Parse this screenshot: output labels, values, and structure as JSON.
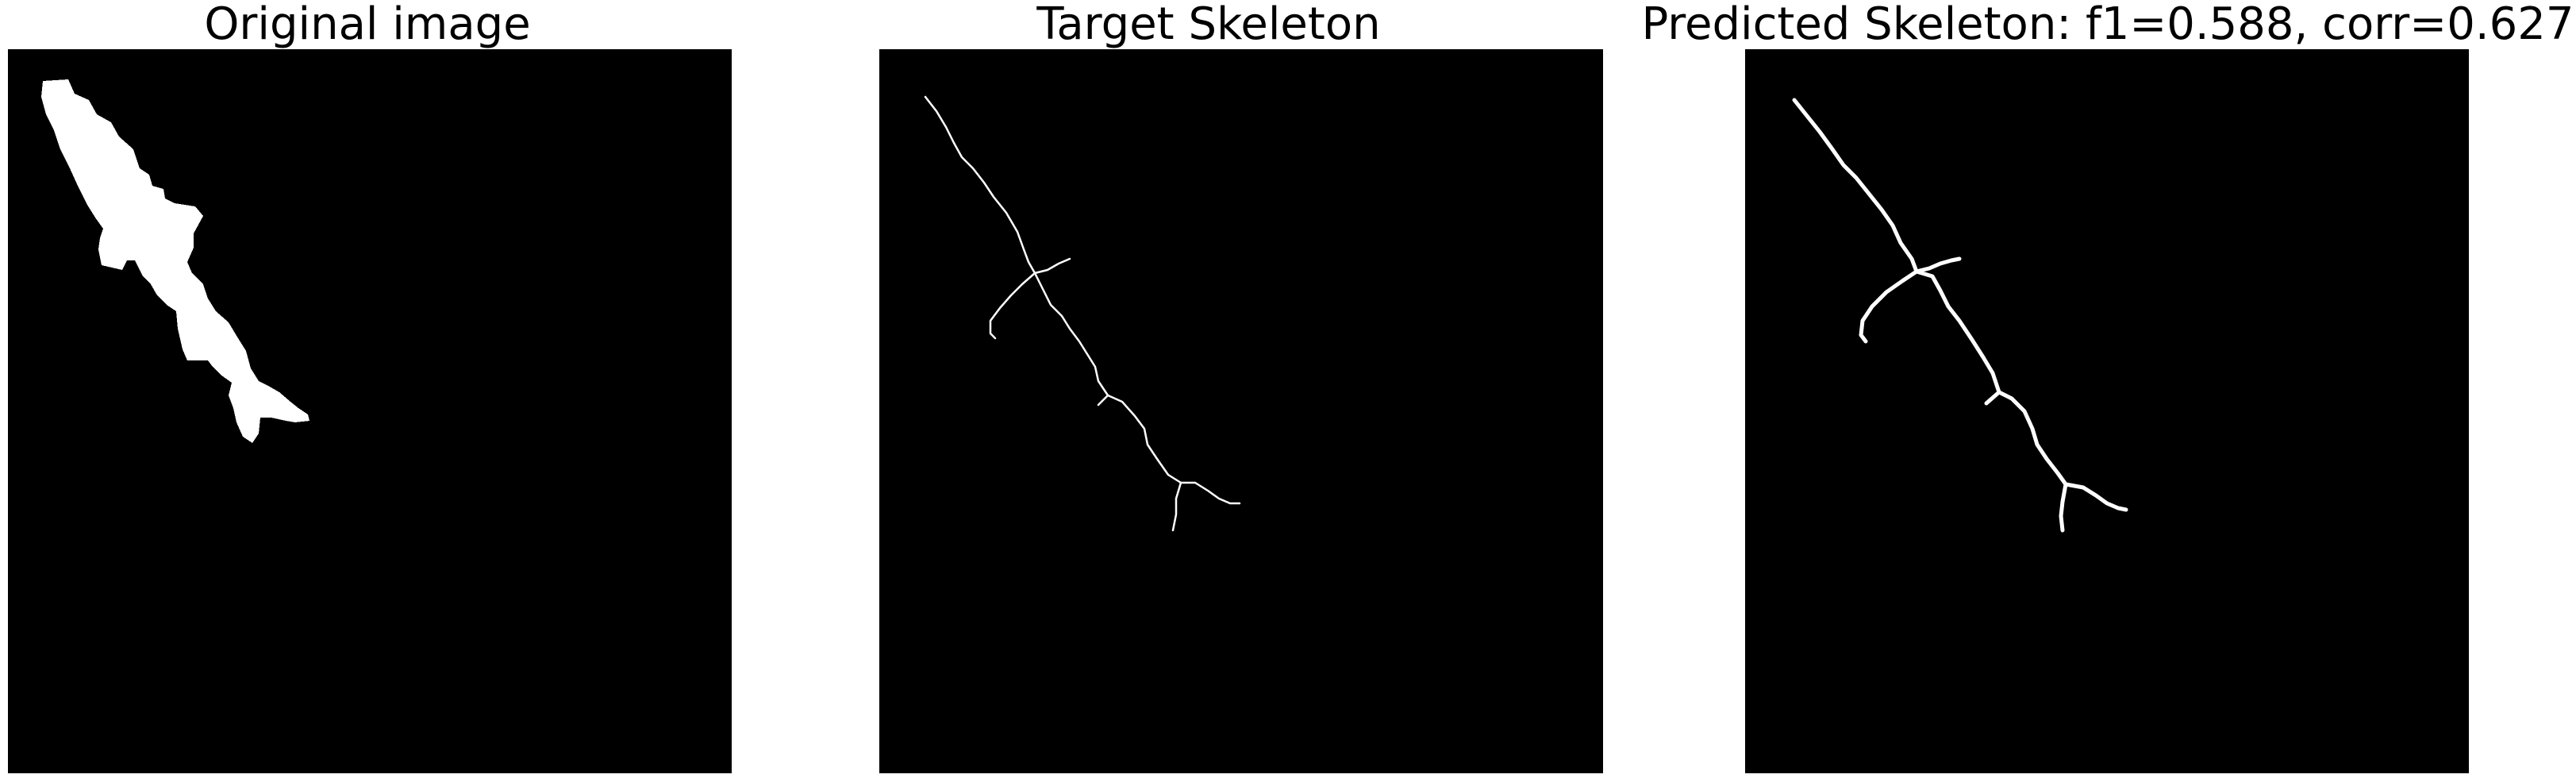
{
  "panels": [
    {
      "title": "Original image"
    },
    {
      "title": "Target Skeleton"
    },
    {
      "title": "Predicted Skeleton: f1=0.588, corr=0.627"
    }
  ],
  "colors": {
    "background": "#000000",
    "foreground": "#ffffff",
    "page": "#ffffff"
  }
}
